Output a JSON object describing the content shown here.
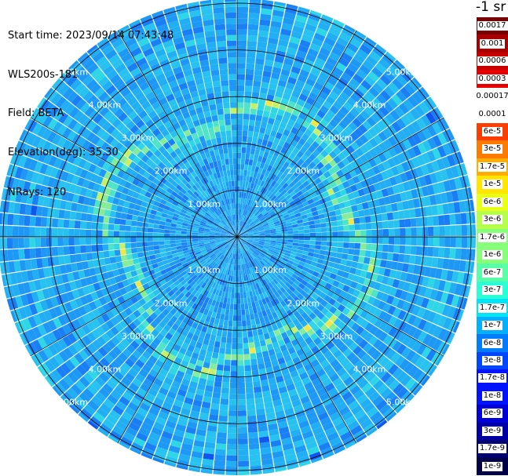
{
  "header": {
    "start_time": "Start time: 2023/09/14 07:43:48",
    "instrument": "WLS200s-181",
    "field": "Field: BETA",
    "elevation": "Elevation(deg): 35.30",
    "nrays": "NRays: 120"
  },
  "colorbar": {
    "unit": "-1 sr",
    "colors": [
      "#7a0000",
      "#a80000",
      "#c80000",
      "#e80000",
      "#ffffff",
      "#ff3d00",
      "#ff7a00",
      "#ffae00",
      "#ffe500",
      "#e8ff1a",
      "#b5ff4a",
      "#86ff79",
      "#59ffa6",
      "#2affd6",
      "#00e4f8",
      "#00b0ff",
      "#007cff",
      "#0046ff",
      "#0012ff",
      "#0000d8",
      "#0000a4",
      "#00006e",
      "#000048"
    ],
    "labels": [
      "0.0017",
      "0.001",
      "0.0006",
      "0.0003",
      "0.00017",
      "0.0001",
      "6e-5",
      "3e-5",
      "1.7e-5",
      "1e-5",
      "6e-6",
      "3e-6",
      "1.7e-6",
      "1e-6",
      "6e-7",
      "3e-7",
      "1.7e-7",
      "1e-7",
      "6e-8",
      "3e-8",
      "1.7e-8",
      "1e-8",
      "6e-9",
      "3e-9",
      "1.7e-9",
      "1e-9"
    ]
  },
  "chart_data": {
    "type": "heatmap",
    "projection": "polar (PPI scan)",
    "field": "BETA",
    "elevation_deg": 35.3,
    "n_rays": 120,
    "range_rings_km": [
      1,
      2,
      3,
      4,
      5
    ],
    "ring_labels": [
      "1.00km",
      "2.00km",
      "3.00km",
      "4.00km",
      "5.00km"
    ],
    "max_range_km": 5.1,
    "spoke_step_deg": 30,
    "dominant_value": "~1e-7 to 1e-6",
    "enhanced_ring_km": [
      2.3,
      3.0
    ],
    "enhanced_value": "~3e-6 to 3e-5",
    "color_scale": "log"
  }
}
